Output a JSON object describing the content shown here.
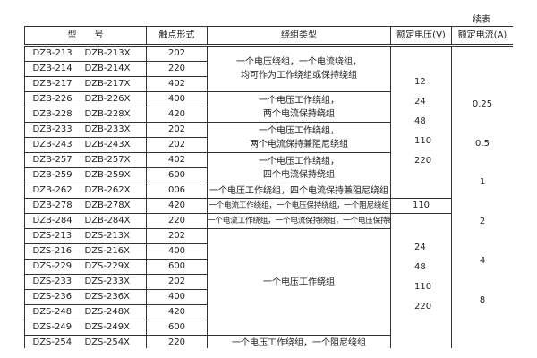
{
  "continued_label": "续表",
  "headers": [
    "型　　号",
    "触点形式",
    "绕组类型",
    "额定电压(V)",
    "额定电流(A)"
  ],
  "rows": [
    {
      "m1": "DZB-213",
      "m2": "DZB-213X",
      "c": "202"
    },
    {
      "m1": "DZB-214",
      "m2": "DZB-214X",
      "c": "220"
    },
    {
      "m1": "DZB-217",
      "m2": "DZB-217X",
      "c": "402"
    },
    {
      "m1": "DZB-226",
      "m2": "DZB-226X",
      "c": "400"
    },
    {
      "m1": "DZB-228",
      "m2": "DZB-228X",
      "c": "420"
    },
    {
      "m1": "DZB-233",
      "m2": "DZB-233X",
      "c": "202"
    },
    {
      "m1": "DZB-243",
      "m2": "DZB-243X",
      "c": "202"
    },
    {
      "m1": "DZB-257",
      "m2": "DZB-257X",
      "c": "402"
    },
    {
      "m1": "DZB-259",
      "m2": "DZB-259X",
      "c": "600"
    },
    {
      "m1": "DZB-262",
      "m2": "DZB-262X",
      "c": "006"
    },
    {
      "m1": "DZB-278",
      "m2": "DZB-278X",
      "c": "420"
    },
    {
      "m1": "DZB-284",
      "m2": "DZB-284X",
      "c": "220"
    },
    {
      "m1": "DZS-213",
      "m2": "DZS-213X",
      "c": "202"
    },
    {
      "m1": "DZS-216",
      "m2": "DZS-216X",
      "c": "400"
    },
    {
      "m1": "DZS-229",
      "m2": "DZS-229X",
      "c": "600"
    },
    {
      "m1": "DZS-233",
      "m2": "DZS-233X",
      "c": "202"
    },
    {
      "m1": "DZS-236",
      "m2": "DZS-236X",
      "c": "400"
    },
    {
      "m1": "DZS-248",
      "m2": "DZS-248X",
      "c": "420"
    },
    {
      "m1": "DZS-249",
      "m2": "DZS-249X",
      "c": "600"
    },
    {
      "m1": "DZS-254",
      "m2": "DZS-254X",
      "c": "220"
    }
  ],
  "windings": [
    [
      "一个电压绕组，一个电流绕组，",
      "均可作为工作绕组或保持绕组"
    ],
    [
      "一个电压工作绕组，",
      "两个电流保持绕组"
    ],
    [
      "一个电压工作绕组，",
      "两个电流保持兼阻尼绕组"
    ],
    [
      "一个电压工作绕组，",
      "四个电流保持绕组"
    ],
    [
      "一个电压工作绕组，四个电流保持兼阻尼绕组"
    ],
    [
      "一个电流工作绕组，一个电压保持绕组，一个阻尼绕组"
    ],
    [
      "一个电流工作绕组，一个电流保持绕组，一个电压保持绕组"
    ],
    [
      "一个电压工作绕组"
    ],
    [
      "一个电压工作绕组，一个阻尼绕组"
    ]
  ],
  "voltages": [
    [
      "12",
      "24",
      "48",
      "110",
      "220"
    ],
    [
      "110"
    ],
    [
      "24",
      "48",
      "110",
      "220"
    ]
  ],
  "currents": [
    "0.25",
    "0.5",
    "1",
    "2",
    "4",
    "8"
  ]
}
